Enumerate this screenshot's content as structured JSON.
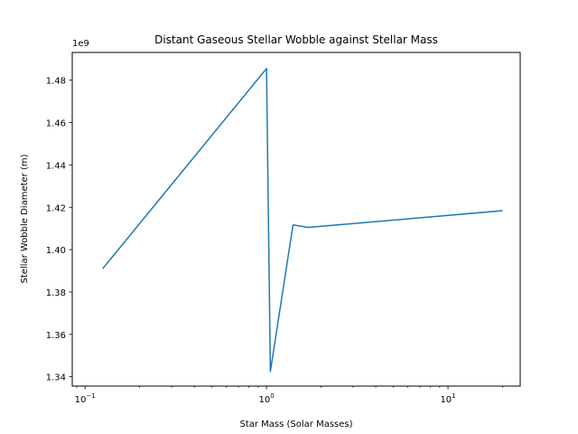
{
  "chart_data": {
    "type": "line",
    "title": "Distant Gaseous Stellar Wobble against Stellar Mass",
    "xlabel": "Star Mass (Solar Masses)",
    "ylabel": "Stellar Wobble Diameter (m)",
    "x_scale": "log",
    "xlim": [
      0.085,
      25
    ],
    "ylim": [
      1335600000.0,
      1493100000.0
    ],
    "y_offset_label": "1e9",
    "x_ticks": [
      {
        "value": 0.1,
        "base": "10",
        "exp": "−1"
      },
      {
        "value": 1,
        "base": "10",
        "exp": "0"
      },
      {
        "value": 10,
        "base": "10",
        "exp": "1"
      }
    ],
    "y_ticks": [
      {
        "value": 1340000000.0,
        "label": "1.34"
      },
      {
        "value": 1360000000.0,
        "label": "1.36"
      },
      {
        "value": 1380000000.0,
        "label": "1.38"
      },
      {
        "value": 1400000000.0,
        "label": "1.40"
      },
      {
        "value": 1420000000.0,
        "label": "1.42"
      },
      {
        "value": 1440000000.0,
        "label": "1.44"
      },
      {
        "value": 1460000000.0,
        "label": "1.46"
      },
      {
        "value": 1480000000.0,
        "label": "1.48"
      }
    ],
    "grid": false,
    "series": [
      {
        "color": "#1f77b4",
        "x": [
          0.125,
          1.0,
          1.05,
          1.4,
          1.7,
          20
        ],
        "y": [
          1391000000.0,
          1485500000.0,
          1342500000.0,
          1411700000.0,
          1410500000.0,
          1418400000.0
        ]
      }
    ]
  }
}
